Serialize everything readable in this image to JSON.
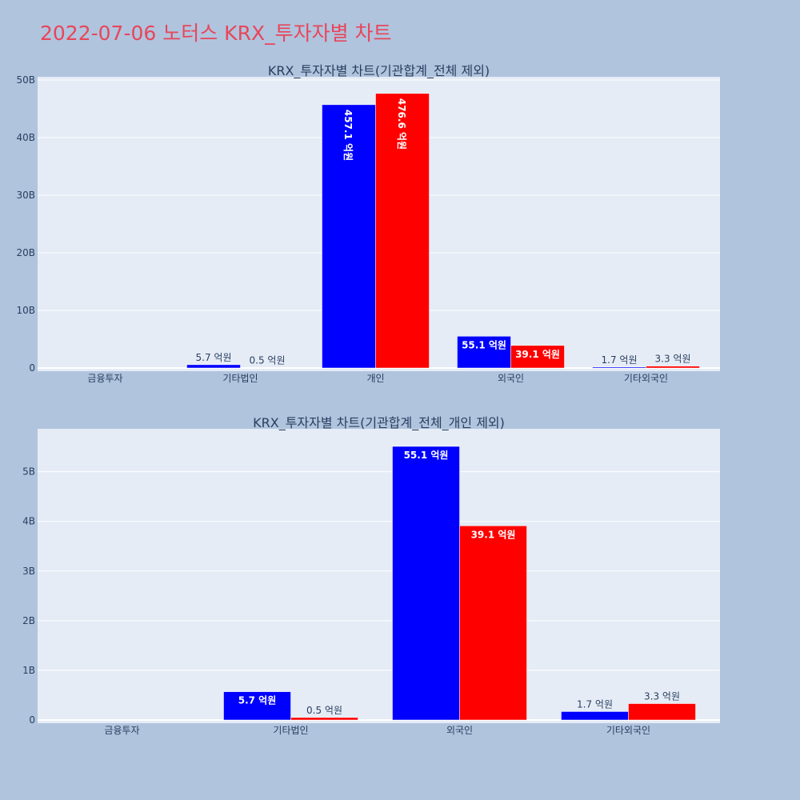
{
  "title": "2022-07-06 노터스 KRX_투자자별 차트",
  "colors": {
    "buy": "#0000ff",
    "sell": "#ff0000",
    "title": "#e8465a"
  },
  "chart_data": [
    {
      "type": "bar",
      "title": "KRX_투자자별 차트(기관합계_전체 제외)",
      "categories": [
        "금융투자",
        "기타법인",
        "개인",
        "외국인",
        "기타외국인"
      ],
      "ylim": [
        0,
        50
      ],
      "yticks": [
        0,
        10,
        20,
        30,
        40,
        50
      ],
      "ytick_labels": [
        "0",
        "10B",
        "20B",
        "30B",
        "40B",
        "50B"
      ],
      "grid": true,
      "series": [
        {
          "color": "#0000ff",
          "values": [
            0,
            0.57,
            45.71,
            5.51,
            0.17
          ],
          "labels": [
            "",
            "5.7 억원",
            "457.1 억원",
            "55.1 억원",
            "1.7 억원"
          ],
          "label_mode": [
            "",
            "outside",
            "inside-rotated",
            "inside",
            "outside"
          ]
        },
        {
          "color": "#ff0000",
          "values": [
            0,
            0.05,
            47.66,
            3.91,
            0.33
          ],
          "labels": [
            "",
            "0.5 억원",
            "476.6 억원",
            "39.1 억원",
            "3.3 억원"
          ],
          "label_mode": [
            "",
            "outside",
            "inside-rotated",
            "inside",
            "outside"
          ]
        }
      ]
    },
    {
      "type": "bar",
      "title": "KRX_투자자별 차트(기관합계_전체_개인 제외)",
      "categories": [
        "금융투자",
        "기타법인",
        "외국인",
        "기타외국인"
      ],
      "ylim": [
        0,
        5.8
      ],
      "yticks": [
        0,
        1,
        2,
        3,
        4,
        5
      ],
      "ytick_labels": [
        "0",
        "1B",
        "2B",
        "3B",
        "4B",
        "5B"
      ],
      "grid": true,
      "series": [
        {
          "color": "#0000ff",
          "values": [
            0,
            0.57,
            5.51,
            0.17
          ],
          "labels": [
            "",
            "5.7 억원",
            "55.1 억원",
            "1.7 억원"
          ],
          "label_mode": [
            "",
            "inside",
            "inside",
            "outside"
          ]
        },
        {
          "color": "#ff0000",
          "values": [
            0,
            0.05,
            3.91,
            0.33
          ],
          "labels": [
            "",
            "0.5 억원",
            "39.1 억원",
            "3.3 억원"
          ],
          "label_mode": [
            "",
            "outside",
            "inside",
            "outside"
          ]
        }
      ]
    }
  ]
}
